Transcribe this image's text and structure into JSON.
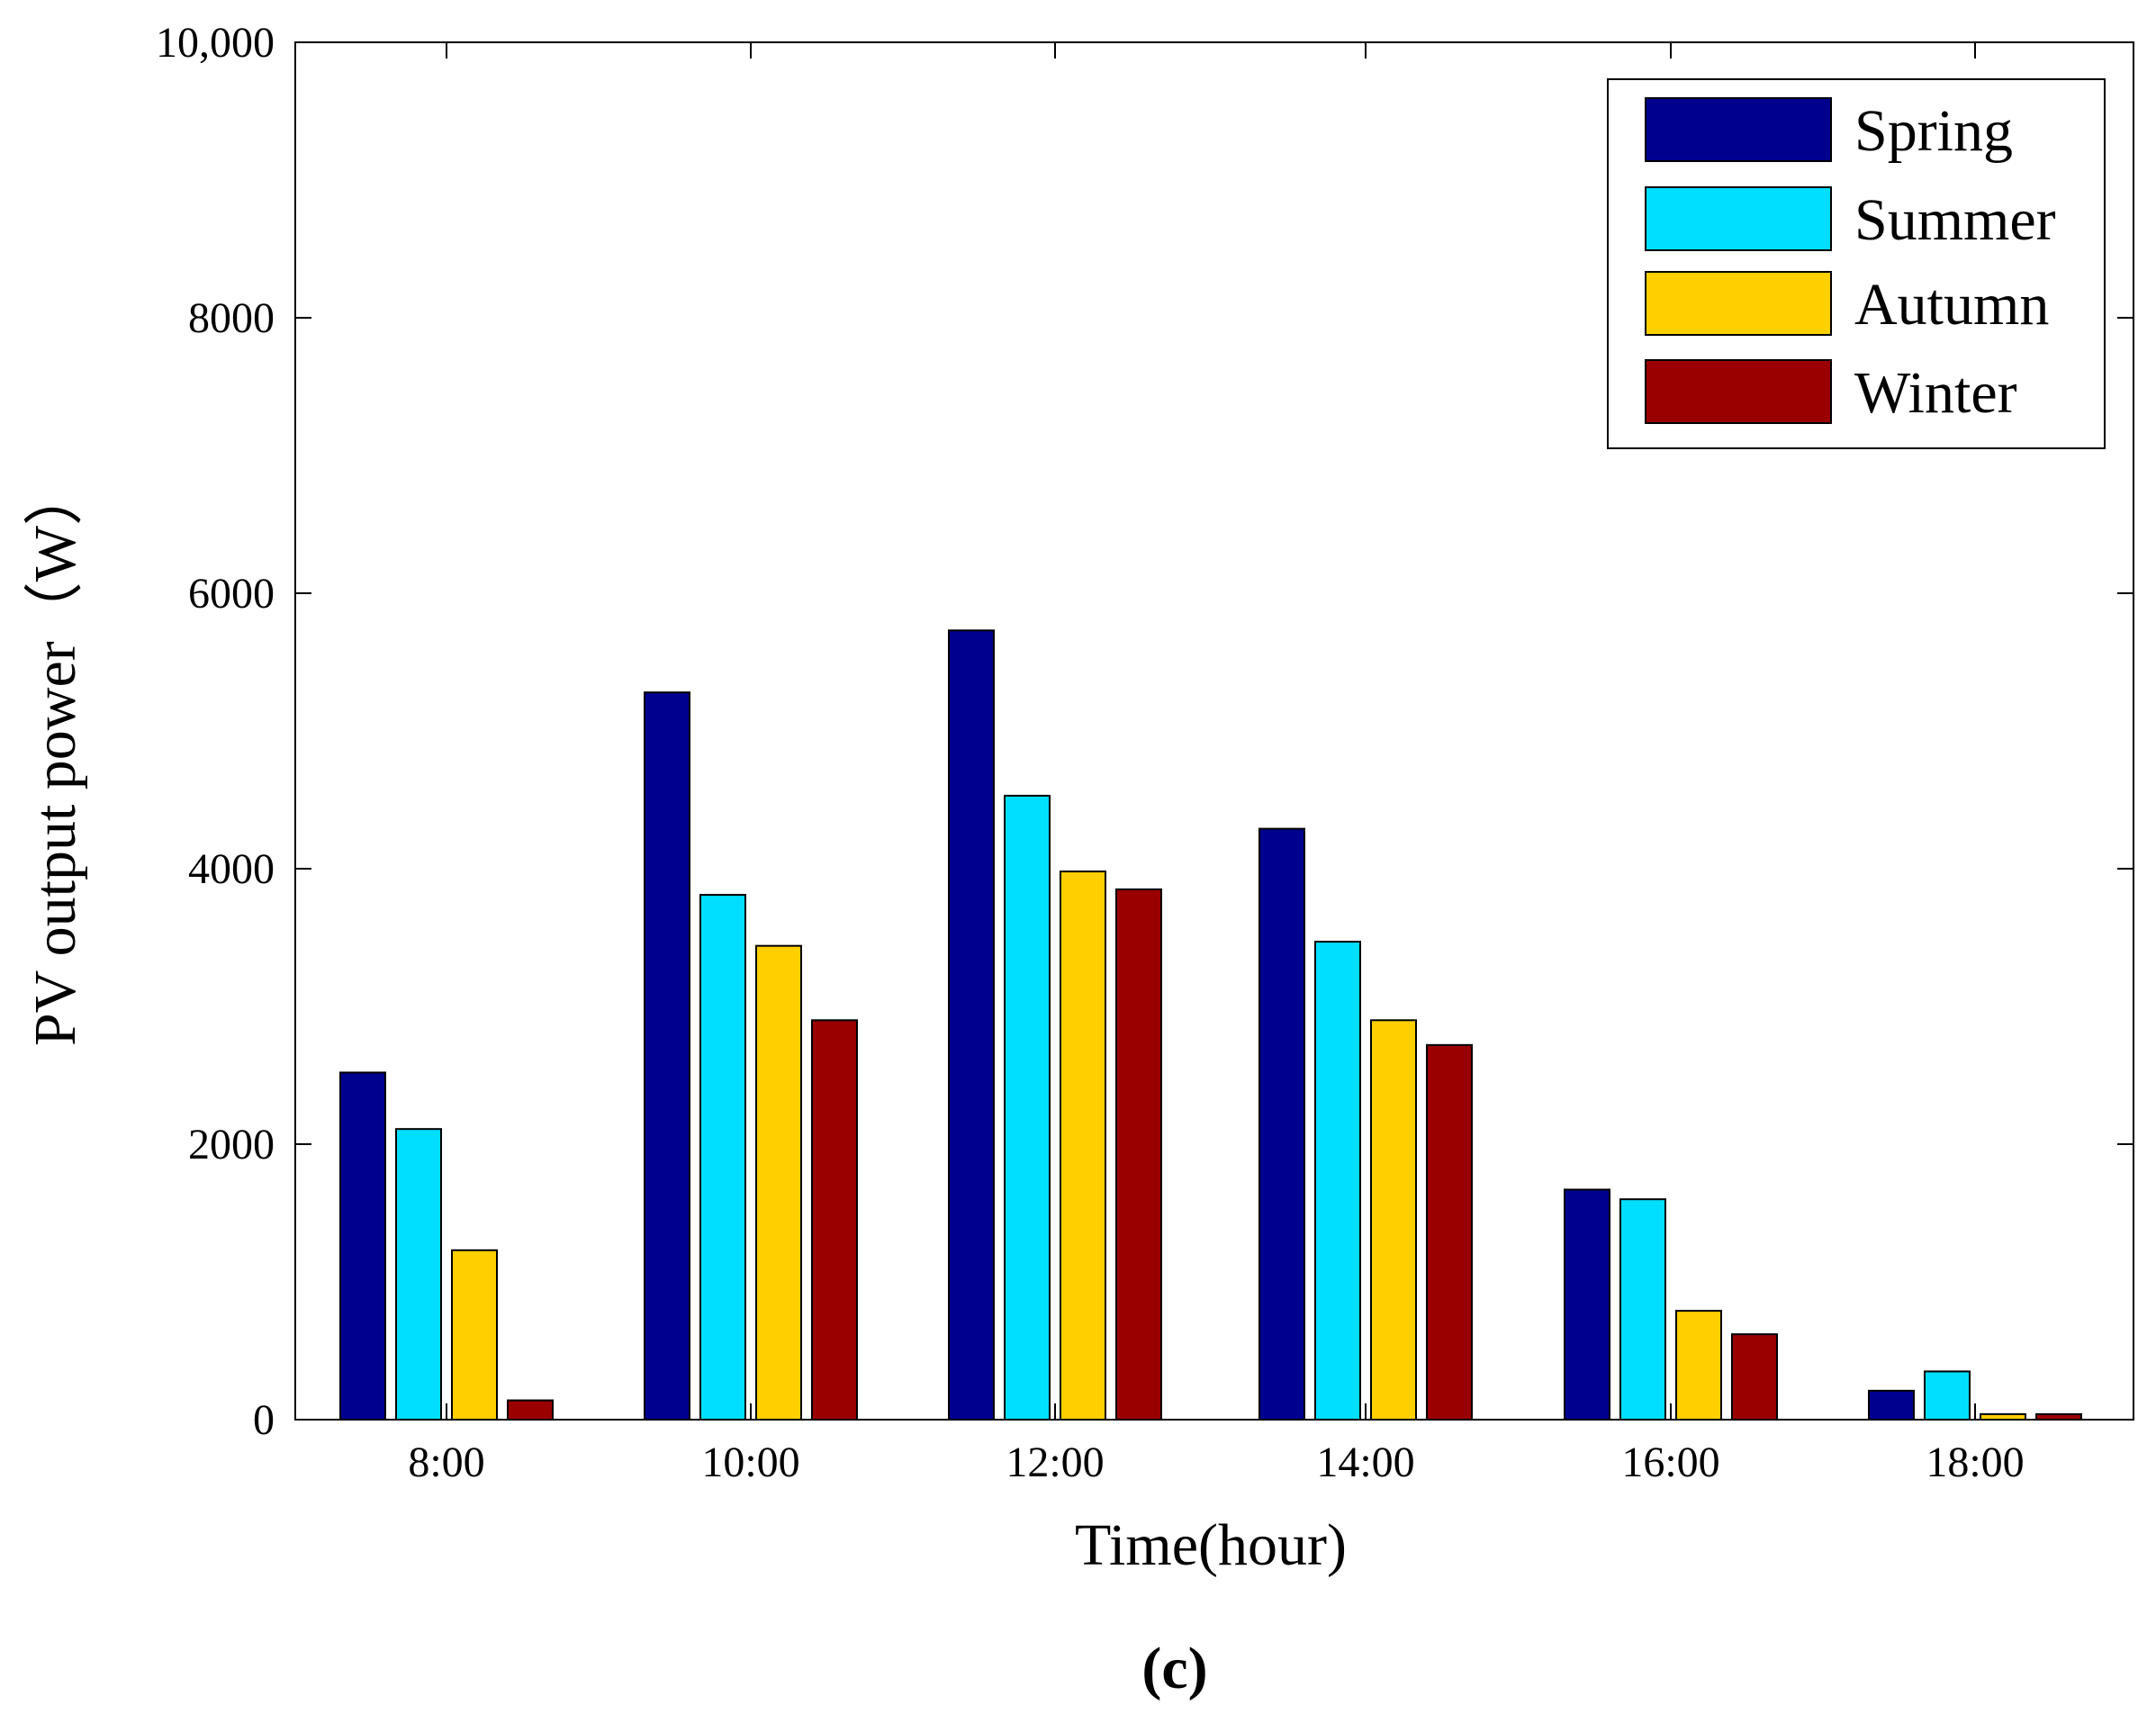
{
  "chart_data": {
    "type": "bar",
    "title": "",
    "xlabel": "Time(hour)",
    "ylabel": "PV output power（W）",
    "panel_label": "(c)",
    "categories": [
      "8:00",
      "10:00",
      "12:00",
      "14:00",
      "16:00",
      "18:00"
    ],
    "ylim": [
      0,
      10000
    ],
    "yticks": [
      0,
      2000,
      4000,
      6000,
      8000,
      10000
    ],
    "ytick_labels": [
      "0",
      "2000",
      "4000",
      "6000",
      "8000",
      "10,000"
    ],
    "legend_position": "top-right",
    "grid": false,
    "series": [
      {
        "name": "Spring",
        "color": "#00008f",
        "values": [
          2520,
          5280,
          5730,
          4290,
          1670,
          210
        ]
      },
      {
        "name": "Summer",
        "color": "#00dfff",
        "values": [
          2110,
          3810,
          4530,
          3470,
          1600,
          350
        ]
      },
      {
        "name": "Autumn",
        "color": "#ffcf00",
        "values": [
          1230,
          3440,
          3980,
          2900,
          790,
          40
        ]
      },
      {
        "name": "Winter",
        "color": "#9a0000",
        "values": [
          140,
          2900,
          3850,
          2720,
          620,
          40
        ]
      }
    ]
  }
}
